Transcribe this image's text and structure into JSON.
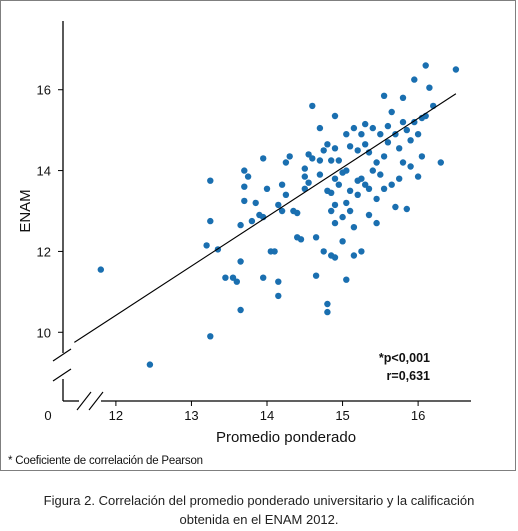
{
  "chart_data": {
    "type": "scatter",
    "xlabel": "Promedio ponderado",
    "ylabel": "ENAM",
    "xlim": [
      11.3,
      16.7
    ],
    "ylim": [
      8.3,
      17.7
    ],
    "x_ticks": [
      12,
      13,
      14,
      15,
      16
    ],
    "y_ticks": [
      10,
      12,
      14,
      16
    ],
    "origin_label": "0",
    "axis_breaks": [
      "x",
      "y"
    ],
    "grid": false,
    "point_color": "#1a6fb0",
    "line_color": "#000000",
    "regression_line": {
      "x": [
        11.45,
        16.5
      ],
      "y": [
        9.75,
        15.9
      ]
    },
    "annotation": [
      "*p<0,001",
      "r=0,631"
    ],
    "points": [
      [
        11.8,
        11.55
      ],
      [
        12.45,
        9.2
      ],
      [
        13.2,
        12.15
      ],
      [
        13.25,
        13.75
      ],
      [
        13.25,
        12.75
      ],
      [
        13.25,
        9.9
      ],
      [
        13.35,
        12.05
      ],
      [
        13.45,
        11.35
      ],
      [
        13.55,
        11.35
      ],
      [
        13.6,
        11.25
      ],
      [
        13.65,
        10.55
      ],
      [
        13.65,
        11.75
      ],
      [
        13.65,
        12.65
      ],
      [
        13.7,
        13.25
      ],
      [
        13.7,
        13.6
      ],
      [
        13.7,
        14.0
      ],
      [
        13.75,
        13.85
      ],
      [
        13.8,
        12.75
      ],
      [
        13.85,
        13.2
      ],
      [
        13.9,
        12.9
      ],
      [
        13.95,
        12.85
      ],
      [
        13.95,
        11.35
      ],
      [
        13.95,
        14.3
      ],
      [
        14.0,
        13.55
      ],
      [
        14.05,
        12.0
      ],
      [
        14.1,
        12.0
      ],
      [
        14.15,
        13.15
      ],
      [
        14.15,
        11.25
      ],
      [
        14.15,
        10.9
      ],
      [
        14.2,
        13.0
      ],
      [
        14.2,
        13.65
      ],
      [
        14.25,
        13.4
      ],
      [
        14.25,
        14.2
      ],
      [
        14.3,
        14.35
      ],
      [
        14.35,
        13.0
      ],
      [
        14.4,
        12.95
      ],
      [
        14.4,
        12.35
      ],
      [
        14.45,
        12.3
      ],
      [
        14.5,
        13.85
      ],
      [
        14.5,
        13.55
      ],
      [
        14.5,
        14.05
      ],
      [
        14.55,
        13.7
      ],
      [
        14.55,
        14.4
      ],
      [
        14.6,
        15.6
      ],
      [
        14.6,
        14.3
      ],
      [
        14.65,
        12.35
      ],
      [
        14.65,
        11.4
      ],
      [
        14.7,
        15.05
      ],
      [
        14.7,
        14.25
      ],
      [
        14.7,
        13.9
      ],
      [
        14.75,
        14.5
      ],
      [
        14.75,
        12.0
      ],
      [
        14.8,
        14.65
      ],
      [
        14.8,
        13.5
      ],
      [
        14.8,
        10.7
      ],
      [
        14.8,
        10.5
      ],
      [
        14.85,
        14.25
      ],
      [
        14.85,
        13.45
      ],
      [
        14.85,
        13.0
      ],
      [
        14.85,
        11.9
      ],
      [
        14.9,
        15.35
      ],
      [
        14.9,
        14.55
      ],
      [
        14.9,
        13.8
      ],
      [
        14.9,
        13.15
      ],
      [
        14.9,
        12.7
      ],
      [
        14.9,
        11.85
      ],
      [
        14.95,
        14.25
      ],
      [
        14.95,
        13.65
      ],
      [
        15.0,
        13.95
      ],
      [
        15.0,
        12.85
      ],
      [
        15.0,
        12.25
      ],
      [
        15.05,
        14.9
      ],
      [
        15.05,
        14.0
      ],
      [
        15.05,
        13.2
      ],
      [
        15.05,
        11.3
      ],
      [
        15.1,
        14.6
      ],
      [
        15.1,
        13.5
      ],
      [
        15.1,
        13.0
      ],
      [
        15.15,
        15.05
      ],
      [
        15.15,
        12.6
      ],
      [
        15.15,
        11.9
      ],
      [
        15.2,
        14.5
      ],
      [
        15.2,
        13.75
      ],
      [
        15.2,
        13.4
      ],
      [
        15.25,
        14.9
      ],
      [
        15.25,
        13.8
      ],
      [
        15.25,
        12.0
      ],
      [
        15.3,
        15.15
      ],
      [
        15.3,
        14.65
      ],
      [
        15.3,
        13.65
      ],
      [
        15.35,
        14.45
      ],
      [
        15.35,
        13.55
      ],
      [
        15.35,
        12.9
      ],
      [
        15.4,
        15.05
      ],
      [
        15.4,
        14.0
      ],
      [
        15.45,
        14.2
      ],
      [
        15.45,
        13.3
      ],
      [
        15.45,
        12.7
      ],
      [
        15.5,
        14.9
      ],
      [
        15.5,
        13.9
      ],
      [
        15.55,
        15.85
      ],
      [
        15.55,
        14.35
      ],
      [
        15.55,
        13.55
      ],
      [
        15.6,
        15.1
      ],
      [
        15.6,
        14.7
      ],
      [
        15.65,
        15.45
      ],
      [
        15.65,
        13.65
      ],
      [
        15.7,
        14.9
      ],
      [
        15.7,
        13.1
      ],
      [
        15.75,
        14.55
      ],
      [
        15.75,
        13.8
      ],
      [
        15.8,
        15.8
      ],
      [
        15.8,
        15.2
      ],
      [
        15.8,
        14.2
      ],
      [
        15.85,
        15.0
      ],
      [
        15.85,
        13.05
      ],
      [
        15.9,
        14.75
      ],
      [
        15.9,
        14.1
      ],
      [
        15.95,
        16.25
      ],
      [
        15.95,
        15.2
      ],
      [
        16.0,
        14.9
      ],
      [
        16.0,
        13.85
      ],
      [
        16.05,
        15.3
      ],
      [
        16.05,
        14.35
      ],
      [
        16.1,
        16.6
      ],
      [
        16.1,
        15.35
      ],
      [
        16.15,
        16.05
      ],
      [
        16.2,
        15.6
      ],
      [
        16.3,
        14.2
      ],
      [
        16.5,
        16.5
      ]
    ]
  },
  "footnote": "* Coeficiente de correlación de Pearson",
  "caption": {
    "line1": "Figura 2. Correlación del promedio ponderado universitario y la calificación",
    "line2": "obtenida en el ENAM 2012."
  }
}
